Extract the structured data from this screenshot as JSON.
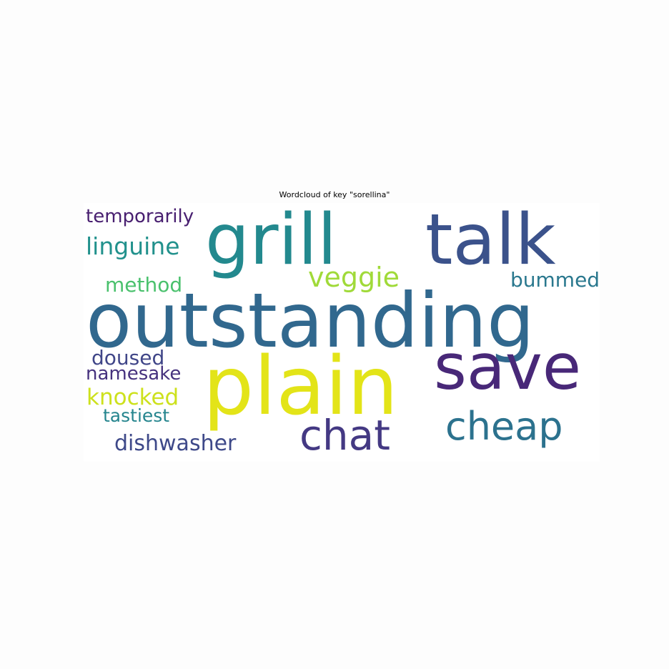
{
  "chart_data": {
    "type": "wordcloud",
    "title": "Wordcloud of key \"sorellina\"",
    "words": [
      {
        "text": "outstanding",
        "color": "#31688e"
      },
      {
        "text": "grill",
        "color": "#23898e"
      },
      {
        "text": "talk",
        "color": "#3b528b"
      },
      {
        "text": "plain",
        "color": "#e3e418"
      },
      {
        "text": "save",
        "color": "#482878"
      },
      {
        "text": "chat",
        "color": "#443983"
      },
      {
        "text": "cheap",
        "color": "#2c728e"
      },
      {
        "text": "veggie",
        "color": "#a0da39"
      },
      {
        "text": "linguine",
        "color": "#21918c"
      },
      {
        "text": "temporarily",
        "color": "#481f70"
      },
      {
        "text": "bummed",
        "color": "#2a788e"
      },
      {
        "text": "method",
        "color": "#4ac16d"
      },
      {
        "text": "doused",
        "color": "#404688"
      },
      {
        "text": "namesake",
        "color": "#46327e"
      },
      {
        "text": "knocked",
        "color": "#cde11d"
      },
      {
        "text": "tastiest",
        "color": "#25858e"
      },
      {
        "text": "dishwasher",
        "color": "#3e4989"
      }
    ]
  }
}
